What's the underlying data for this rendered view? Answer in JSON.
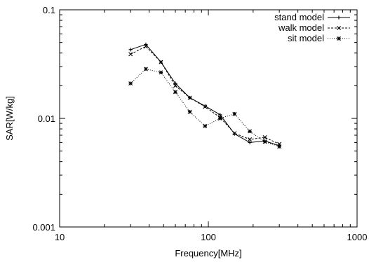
{
  "chart_data": {
    "type": "line",
    "title": "",
    "xlabel": "Frequency[MHz]",
    "ylabel": "SAR[W/kg]",
    "xscale": "log",
    "yscale": "log",
    "xlim": [
      10,
      1000
    ],
    "ylim": [
      0.001,
      0.1
    ],
    "xticks": [
      10,
      100,
      1000
    ],
    "xtick_labels": [
      "10",
      "100",
      "1000"
    ],
    "yticks": [
      0.001,
      0.01,
      0.1
    ],
    "ytick_labels": [
      "0.001",
      "0.01",
      "0.1"
    ],
    "grid": false,
    "legend_position": "top-right",
    "series": [
      {
        "name": "stand model",
        "line_style": "solid",
        "marker": "plus",
        "x": [
          30,
          38,
          48,
          60,
          75,
          95,
          120,
          150,
          190,
          240,
          300
        ],
        "y": [
          0.043,
          0.048,
          0.033,
          0.021,
          0.0155,
          0.013,
          0.0108,
          0.0072,
          0.006,
          0.0062,
          0.0056
        ]
      },
      {
        "name": "walk model",
        "line_style": "dashed",
        "marker": "cross",
        "x": [
          30,
          38,
          48,
          60,
          75,
          95,
          120,
          150,
          190,
          240,
          300
        ],
        "y": [
          0.039,
          0.046,
          0.033,
          0.02,
          0.0155,
          0.0128,
          0.0102,
          0.0073,
          0.0064,
          0.0067,
          0.0058
        ]
      },
      {
        "name": "sit model",
        "line_style": "dotted",
        "marker": "star",
        "x": [
          30,
          38,
          48,
          60,
          75,
          95,
          120,
          150,
          190,
          240,
          300
        ],
        "y": [
          0.021,
          0.0285,
          0.0265,
          0.0175,
          0.0115,
          0.0085,
          0.01,
          0.011,
          0.0076,
          0.0061,
          0.0055
        ]
      }
    ]
  }
}
